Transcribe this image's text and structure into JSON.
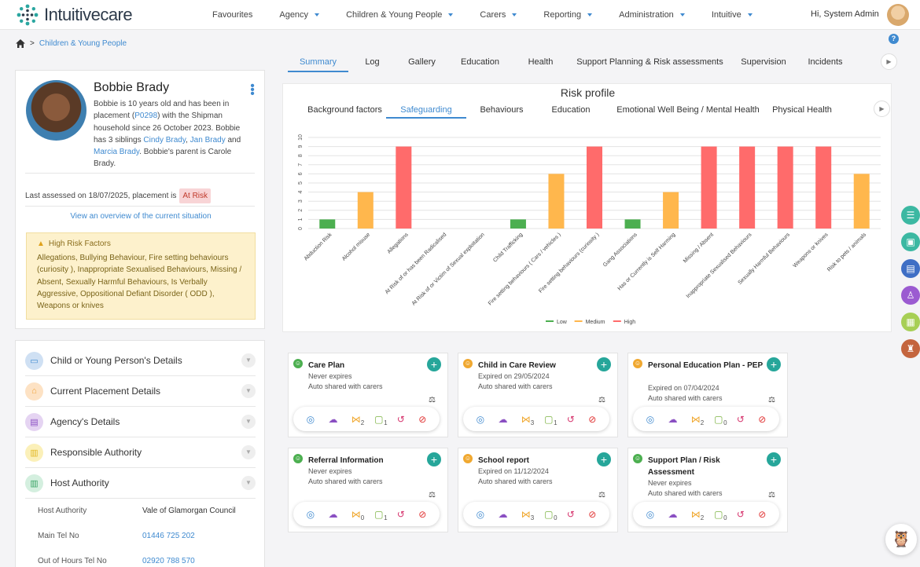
{
  "brand": {
    "name": "Intuitivecare"
  },
  "topnav": [
    {
      "label": "Favourites",
      "caret": false
    },
    {
      "label": "Agency",
      "caret": true
    },
    {
      "label": "Children & Young People",
      "caret": true
    },
    {
      "label": "Carers",
      "caret": true
    },
    {
      "label": "Reporting",
      "caret": true
    },
    {
      "label": "Administration",
      "caret": true
    },
    {
      "label": "Intuitive",
      "caret": true
    }
  ],
  "user": {
    "greeting": "Hi, System Admin"
  },
  "breadcrumb": {
    "sep": ">",
    "current": "Children & Young People"
  },
  "help": "?",
  "tabs": [
    "Summary",
    "Log",
    "Gallery",
    "Education",
    "Health",
    "Support Planning & Risk assessments",
    "Supervision",
    "Incidents"
  ],
  "active_tab": "Summary",
  "profile": {
    "name": "Bobbie Brady",
    "bio_1": "Bobbie is 10 years old and has been in placement (",
    "id": "P0298",
    "bio_2": ") with the Shipman household since 26 October 2023. Bobbie has 3 siblings ",
    "sib1": "Cindy Brady",
    "sep1": ", ",
    "sib2": "Jan Brady",
    "and": " and ",
    "sib3": "Marcia Brady",
    "bio_3": ". Bobbie's parent is Carole Brady.",
    "last_assessed": "Last assessed on 18/07/2025, placement is",
    "risk_badge": "At Risk",
    "overview_link": "View an overview of the current situation",
    "hrf_title": "High Risk Factors",
    "hrf_body": "Allegations, Bullying Behaviour, Fire setting behaviours (curiosity ), Inappropriate Sexualised Behaviours, Missing / Absent, Sexually Harmful Behaviours, Is Verbally Aggressive, Oppositional Defiant Disorder ( ODD ), Weapons or knives"
  },
  "details": [
    {
      "label": "Child or Young Person's Details",
      "color": "#cfe0f3",
      "icon": "id-card-icon",
      "glyph": "▭",
      "fg": "#3f8ad0"
    },
    {
      "label": "Current Placement Details",
      "color": "#fde2c4",
      "icon": "house-icon",
      "glyph": "⌂",
      "fg": "#f0a43a"
    },
    {
      "label": "Agency's Details",
      "color": "#e5d4f2",
      "icon": "agency-card-icon",
      "glyph": "▤",
      "fg": "#8a4fc2"
    },
    {
      "label": "Responsible Authority",
      "color": "#fbf0b9",
      "icon": "building-icon",
      "glyph": "▥",
      "fg": "#e3b928"
    },
    {
      "label": "Host Authority",
      "color": "#d4efdf",
      "icon": "host-building-icon",
      "glyph": "▥",
      "fg": "#3aa366"
    }
  ],
  "host_authority": {
    "label_1": "Host Authority",
    "value_1": "Vale of Glamorgan Council",
    "label_2": "Main Tel No",
    "value_2": "01446 725 202",
    "label_3": "Out of Hours Tel No",
    "value_3": "02920 788 570"
  },
  "chart_tabs": [
    "Background factors",
    "Safeguarding",
    "Behaviours",
    "Education",
    "Emotional Well Being / Mental Health",
    "Physical Health"
  ],
  "chart_active": "Safeguarding",
  "chart_data": {
    "type": "bar",
    "title": "Risk profile",
    "categories": [
      "Abduction Risk",
      "Alcohol misuse",
      "Allegations",
      "At Risk of or has been Radicalised",
      "At Risk of or Victim of Sexual exploitation",
      "Child Trafficking",
      "Fire setting behaviours ( Cars / vehicles )",
      "Fire setting behaviours (curiosity )",
      "Gang Associations",
      "Has or Currently is Self Harming",
      "Missing / Absent",
      "Inappropriate Sexualised Behaviours",
      "Sexually Harmful Behaviours",
      "Weapons or knives",
      "Risk to pets / animals"
    ],
    "values": [
      1,
      4,
      9,
      0,
      0,
      1,
      6,
      9,
      1,
      4,
      9,
      9,
      9,
      9,
      6
    ],
    "levels": [
      "Low",
      "Medium",
      "High",
      "",
      "",
      "Low",
      "Medium",
      "High",
      "Low",
      "Medium",
      "High",
      "High",
      "High",
      "High",
      "Medium"
    ],
    "legend": [
      {
        "name": "Low",
        "color": "#4caf50"
      },
      {
        "name": "Medium",
        "color": "#ffb74d"
      },
      {
        "name": "High",
        "color": "#ff6b6b"
      }
    ],
    "ylim": [
      0,
      10
    ],
    "yticks": [
      "0",
      "1",
      "2",
      "3",
      "4",
      "5",
      "6",
      "7",
      "8",
      "9",
      "10"
    ],
    "grid": true,
    "legend_position": "bottom"
  },
  "docs": [
    {
      "title": "Care Plan",
      "line1": "Never expires",
      "line2": "Auto shared with carers",
      "mood": "happy",
      "share": "2",
      "file": "1"
    },
    {
      "title": "Child in Care Review",
      "line1": "Expired on 29/05/2024",
      "line2": "Auto shared with carers",
      "mood": "neutral",
      "share": "3",
      "file": "1"
    },
    {
      "title": "Personal Education Plan - PEP",
      "line1": "Expired on 07/04/2024",
      "line2": "Auto shared with carers",
      "mood": "neutral",
      "share": "2",
      "file": "0"
    },
    {
      "title": "Referral Information",
      "line1": "Never expires",
      "line2": "Auto shared with carers",
      "mood": "happy",
      "share": "0",
      "file": "1"
    },
    {
      "title": "School report",
      "line1": "Expired on 11/12/2024",
      "line2": "Auto shared with carers",
      "mood": "neutral",
      "share": "3",
      "file": "0"
    },
    {
      "title": "Support Plan / Risk Assessment",
      "line1": "Never expires",
      "line2": "Auto shared with carers",
      "mood": "happy",
      "share": "2",
      "file": "0"
    }
  ],
  "side_buttons": [
    {
      "name": "list-icon",
      "color": "#3cb8a2",
      "glyph": "☰"
    },
    {
      "name": "briefcase-icon",
      "color": "#3cb8a2",
      "glyph": "▣"
    },
    {
      "name": "document-icon",
      "color": "#3f6fc5",
      "glyph": "▤"
    },
    {
      "name": "person-icon",
      "color": "#9b5bd1",
      "glyph": "♙"
    },
    {
      "name": "calendar-icon",
      "color": "#a7cf55",
      "glyph": "▦"
    },
    {
      "name": "stamp-icon",
      "color": "#c4653e",
      "glyph": "♜"
    }
  ]
}
